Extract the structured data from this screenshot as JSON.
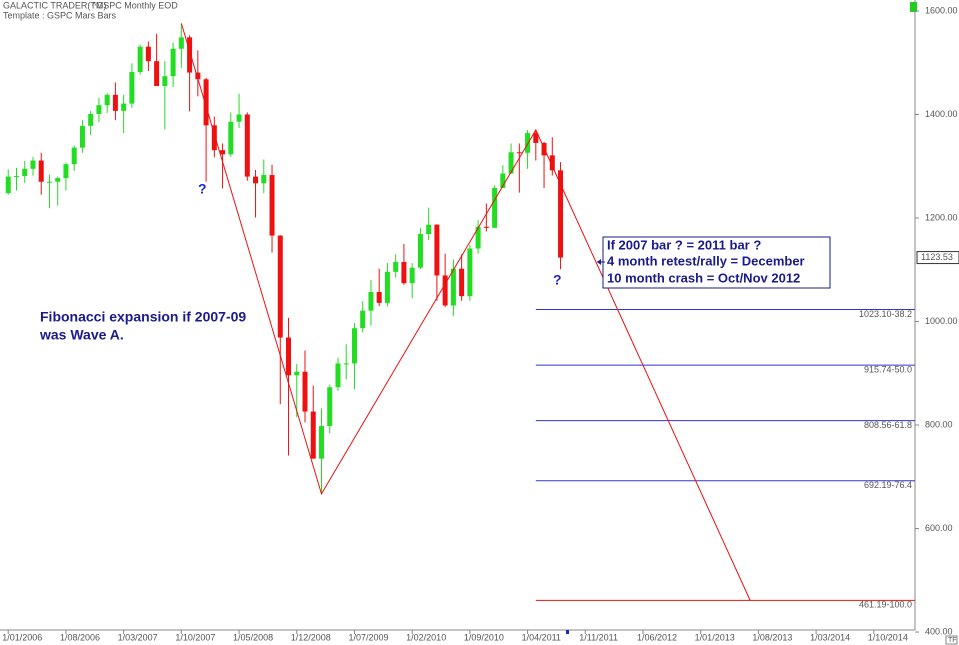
{
  "chart_data": {
    "type": "candlestick",
    "header": [
      "GALACTIC TRADER(TM)",
      "^GSPC Monthly EOD",
      "Template : GSPC Mars Bars"
    ],
    "annotation": [
      "Fibonacci expansion if 2007-09",
      "was Wave A."
    ],
    "box_text": [
      "If 2007 bar ? = 2011 bar ?",
      "4 month retest/rally = December",
      "10 month crash = Oct/Nov 2012"
    ],
    "question_marks": [
      "?",
      "?"
    ],
    "corner_label": "TF",
    "x": [
      "2006-01",
      "2006-02",
      "2006-03",
      "2006-04",
      "2006-05",
      "2006-06",
      "2006-07",
      "2006-08",
      "2006-09",
      "2006-10",
      "2006-11",
      "2006-12",
      "2007-01",
      "2007-02",
      "2007-03",
      "2007-04",
      "2007-05",
      "2007-06",
      "2007-07",
      "2007-08",
      "2007-09",
      "2007-10",
      "2007-11",
      "2007-12",
      "2008-01",
      "2008-02",
      "2008-03",
      "2008-04",
      "2008-05",
      "2008-06",
      "2008-07",
      "2008-08",
      "2008-09",
      "2008-10",
      "2008-11",
      "2008-12",
      "2009-01",
      "2009-02",
      "2009-03",
      "2009-04",
      "2009-05",
      "2009-06",
      "2009-07",
      "2009-08",
      "2009-09",
      "2009-10",
      "2009-11",
      "2009-12",
      "2010-01",
      "2010-02",
      "2010-03",
      "2010-04",
      "2010-05",
      "2010-06",
      "2010-07",
      "2010-08",
      "2010-09",
      "2010-10",
      "2010-11",
      "2010-12",
      "2011-01",
      "2011-02",
      "2011-03",
      "2011-04",
      "2011-05",
      "2011-06",
      "2011-07",
      "2011-08"
    ],
    "open": [
      1248,
      1280,
      1281,
      1295,
      1311,
      1270,
      1270,
      1277,
      1304,
      1336,
      1378,
      1401,
      1418,
      1438,
      1407,
      1421,
      1482,
      1531,
      1503,
      1455,
      1474,
      1527,
      1549,
      1481,
      1468,
      1379,
      1331,
      1323,
      1386,
      1400,
      1280,
      1267,
      1283,
      1166,
      969,
      896,
      903,
      826,
      735,
      798,
      873,
      919,
      919,
      987,
      1021,
      1057,
      1036,
      1096,
      1115,
      1074,
      1104,
      1169,
      1187,
      1089,
      1031,
      1102,
      1049,
      1141,
      1183,
      1181,
      1258,
      1286,
      1327,
      1326,
      1364,
      1345,
      1321,
      1292
    ],
    "high": [
      1294,
      1297,
      1310,
      1318,
      1326,
      1284,
      1280,
      1307,
      1340,
      1389,
      1407,
      1432,
      1441,
      1462,
      1438,
      1499,
      1535,
      1541,
      1556,
      1503,
      1539,
      1576,
      1553,
      1524,
      1471,
      1396,
      1344,
      1404,
      1440,
      1404,
      1293,
      1313,
      1303,
      1167,
      1007,
      918,
      944,
      876,
      832,
      878,
      930,
      956,
      997,
      1039,
      1080,
      1102,
      1113,
      1130,
      1150,
      1113,
      1181,
      1220,
      1188,
      1131,
      1120,
      1130,
      1148,
      1196,
      1228,
      1263,
      1302,
      1344,
      1344,
      1370,
      1371,
      1347,
      1356,
      1308
    ],
    "low": [
      1245,
      1253,
      1268,
      1282,
      1245,
      1219,
      1224,
      1253,
      1291,
      1326,
      1360,
      1385,
      1403,
      1389,
      1364,
      1413,
      1477,
      1484,
      1455,
      1371,
      1453,
      1490,
      1406,
      1435,
      1270,
      1317,
      1257,
      1318,
      1374,
      1272,
      1201,
      1248,
      1133,
      840,
      741,
      815,
      805,
      735,
      667,
      784,
      866,
      888,
      869,
      979,
      992,
      1030,
      1029,
      1085,
      1071,
      1045,
      1101,
      1157,
      1040,
      1028,
      1011,
      1040,
      1040,
      1131,
      1174,
      1181,
      1258,
      1285,
      1249,
      1295,
      1311,
      1258,
      1282,
      1101
    ],
    "close": [
      1280,
      1281,
      1295,
      1311,
      1270,
      1270,
      1277,
      1304,
      1336,
      1378,
      1401,
      1418,
      1438,
      1407,
      1421,
      1482,
      1531,
      1503,
      1455,
      1474,
      1527,
      1549,
      1481,
      1468,
      1379,
      1331,
      1323,
      1386,
      1400,
      1280,
      1267,
      1283,
      1166,
      969,
      896,
      903,
      826,
      735,
      798,
      873,
      919,
      919,
      987,
      1021,
      1057,
      1036,
      1096,
      1115,
      1074,
      1104,
      1169,
      1187,
      1089,
      1031,
      1102,
      1049,
      1141,
      1183,
      1181,
      1258,
      1286,
      1327,
      1326,
      1364,
      1345,
      1321,
      1292,
      1123.53
    ],
    "up_color": "#22dd22",
    "down_color": "#ee1111",
    "last_price": 1123.53,
    "wave": [
      {
        "x": "2007-10",
        "y": 1576
      },
      {
        "x": "2009-03",
        "y": 667
      },
      {
        "x": "2011-05",
        "y": 1370
      },
      {
        "x": "2013-07",
        "y": 461.19
      }
    ],
    "wave_color": "#ee1111",
    "fib_start": "2011-05",
    "fib_levels": [
      {
        "value": 1023.1,
        "label": "1023.10-38.2",
        "color": "#3333cc"
      },
      {
        "value": 915.74,
        "label": "915.74-50.0",
        "color": "#3333cc"
      },
      {
        "value": 808.56,
        "label": "808.56-61.8",
        "color": "#3333cc"
      },
      {
        "value": 692.19,
        "label": "692.19-76.4",
        "color": "#3333cc"
      },
      {
        "value": 461.19,
        "label": "461.19-100.0",
        "color": "#ee1111"
      }
    ],
    "xlim": [
      "2005-12",
      "2015-03"
    ],
    "xticks": [
      {
        "value": "2006-01",
        "label": "1/01/2006"
      },
      {
        "value": "2006-08",
        "label": "1/08/2006"
      },
      {
        "value": "2007-03",
        "label": "1/03/2007"
      },
      {
        "value": "2007-10",
        "label": "1/10/2007"
      },
      {
        "value": "2008-05",
        "label": "1/05/2008"
      },
      {
        "value": "2008-12",
        "label": "1/12/2008"
      },
      {
        "value": "2009-07",
        "label": "1/07/2009"
      },
      {
        "value": "2010-02",
        "label": "1/02/2010"
      },
      {
        "value": "2010-09",
        "label": "1/09/2010"
      },
      {
        "value": "2011-04",
        "label": "1/04/2011"
      },
      {
        "value": "2011-11",
        "label": "1/11/2011"
      },
      {
        "value": "2012-06",
        "label": "1/06/2012"
      },
      {
        "value": "2013-01",
        "label": "1/01/2013"
      },
      {
        "value": "2013-08",
        "label": "1/08/2013"
      },
      {
        "value": "2014-03",
        "label": "1/03/2014"
      },
      {
        "value": "2014-10",
        "label": "1/10/2014"
      }
    ],
    "ylim": [
      385,
      1615
    ],
    "yticks": [
      {
        "value": 400,
        "label": "400.00"
      },
      {
        "value": 600,
        "label": "600.00"
      },
      {
        "value": 800,
        "label": "800.00"
      },
      {
        "value": 1000,
        "label": "1000.00"
      },
      {
        "value": 1200,
        "label": "1200.00"
      },
      {
        "value": 1400,
        "label": "1400.00"
      },
      {
        "value": 1600,
        "label": "1600.00"
      }
    ]
  }
}
